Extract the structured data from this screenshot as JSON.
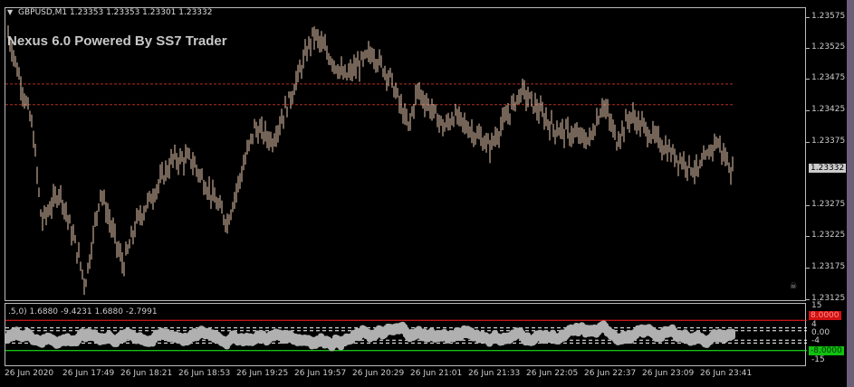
{
  "header": {
    "symbol_line": "GBPUSD,M1  1.23353 1.23353 1.23301 1.23332",
    "menu_icon": "triangle-down-icon"
  },
  "brand": "Nexus 6.0 Powered By SS7 Trader",
  "price_axis": [
    "1.23575",
    "1.23525",
    "1.23475",
    "1.23425",
    "1.23375",
    "1.23275",
    "1.23225",
    "1.23175",
    "1.23125"
  ],
  "current_price": "1.23332",
  "colors": {
    "bars": "#e8c8b0",
    "levels": "#b03020",
    "ind_body": "#b0b0b0",
    "ind_high": "#ff2020",
    "ind_low": "#20ff20"
  },
  "indicator": {
    "label": ".5,0) 1.6880 -9.4231 1.6880 -2.7991",
    "axis": [
      "15",
      "4",
      "0.00",
      "-4",
      "-15"
    ],
    "upper": "8.0000",
    "lower": "-8.0000"
  },
  "time_axis": [
    "26 Jun 2020",
    "26 Jun 17:49",
    "26 Jun 18:21",
    "26 Jun 18:53",
    "26 Jun 19:25",
    "26 Jun 19:57",
    "26 Jun 20:29",
    "26 Jun 21:01",
    "26 Jun 21:33",
    "26 Jun 22:05",
    "26 Jun 22:37",
    "26 Jun 23:09",
    "26 Jun 23:41"
  ]
}
